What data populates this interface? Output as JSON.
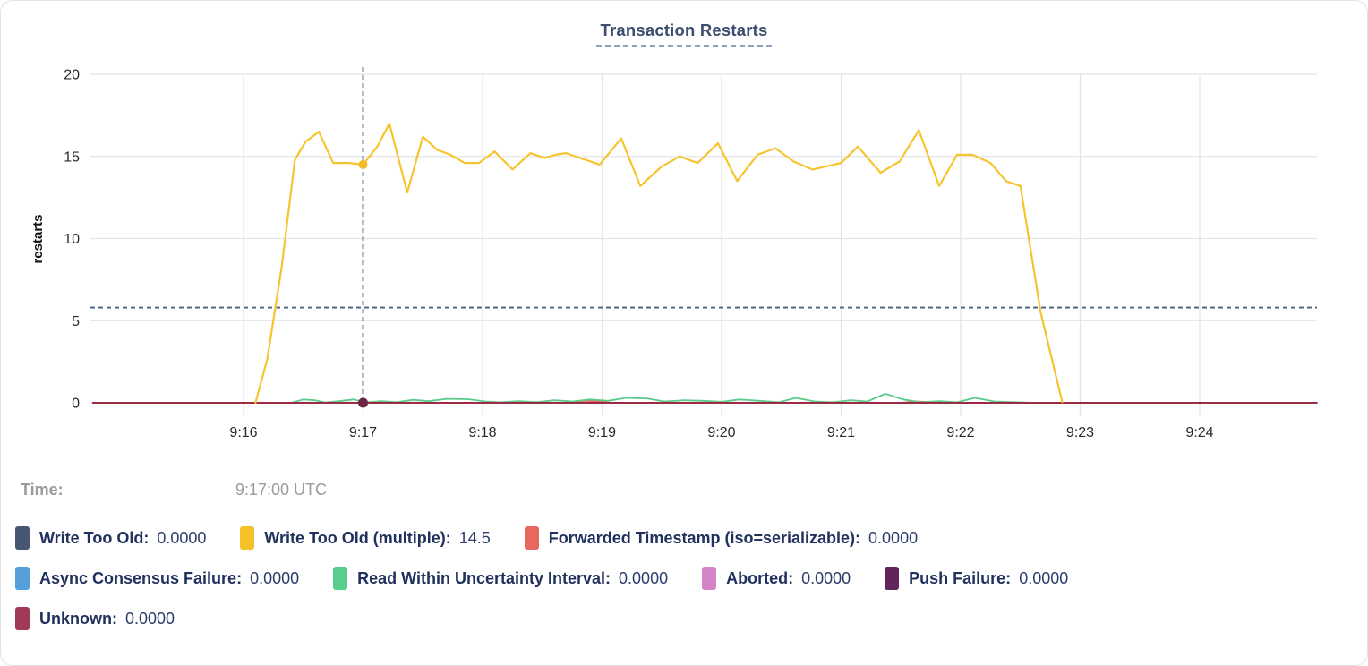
{
  "title": "Transaction Restarts",
  "tooltip": {
    "time_label": "Time:",
    "time_value": "9:17:00 UTC"
  },
  "legend": {
    "rows": [
      [
        {
          "label": "Write Too Old:",
          "value": "0.0000",
          "color": "#475672"
        },
        {
          "label": "Write Too Old (multiple):",
          "value": "14.5",
          "color": "#F4C127"
        },
        {
          "label": "Forwarded Timestamp (iso=serializable):",
          "value": "0.0000",
          "color": "#E7695D"
        }
      ],
      [
        {
          "label": "Async Consensus Failure:",
          "value": "0.0000",
          "color": "#55A0DB"
        },
        {
          "label": "Read Within Uncertainty Interval:",
          "value": "0.0000",
          "color": "#57CE8C"
        },
        {
          "label": "Aborted:",
          "value": "0.0000",
          "color": "#D584C9"
        },
        {
          "label": "Push Failure:",
          "value": "0.0000",
          "color": "#622459"
        }
      ],
      [
        {
          "label": "Unknown:",
          "value": "0.0000",
          "color": "#A03A58"
        }
      ]
    ]
  },
  "chart_data": {
    "type": "line",
    "title": "Transaction Restarts",
    "ylabel": "restarts",
    "ylim": [
      0,
      20
    ],
    "yticks": [
      0,
      5,
      10,
      15,
      20
    ],
    "xticks": [
      {
        "t": 16,
        "label": "9:16"
      },
      {
        "t": 17,
        "label": "9:17"
      },
      {
        "t": 18,
        "label": "9:18"
      },
      {
        "t": 19,
        "label": "9:19"
      },
      {
        "t": 20,
        "label": "9:20"
      },
      {
        "t": 21,
        "label": "9:21"
      },
      {
        "t": 22,
        "label": "9:22"
      },
      {
        "t": 23,
        "label": "9:23"
      },
      {
        "t": 24,
        "label": "9:24"
      }
    ],
    "x_domain_minutes": [
      14.74,
      24.98
    ],
    "x_unit": "clock time, minutes after 9:00",
    "grid": true,
    "crosshair": {
      "time_minutes": 17.0,
      "time_label": "9:17:00 UTC",
      "threshold_line_value": 5.8
    },
    "series": [
      {
        "name": "Write Too Old",
        "color": "#475672",
        "flat_zero": true,
        "w": 1.5
      },
      {
        "name": "Async Consensus Failure",
        "color": "#55A0DB",
        "flat_zero": true,
        "w": 1.5
      },
      {
        "name": "Aborted",
        "color": "#D584C9",
        "flat_zero": true,
        "w": 1.5
      },
      {
        "name": "Push Failure",
        "color": "#622459",
        "flat_zero": true,
        "w": 1.5
      },
      {
        "name": "Forwarded Timestamp (iso=serializable)",
        "color": "#E7695D",
        "w": 1.8,
        "points": [
          [
            14.74,
            0
          ],
          [
            18.7,
            0
          ],
          [
            18.85,
            0.12
          ],
          [
            18.97,
            0.08
          ],
          [
            19.08,
            0
          ],
          [
            21.5,
            0
          ],
          [
            21.62,
            0.08
          ],
          [
            21.78,
            0.04
          ],
          [
            21.9,
            0
          ],
          [
            22.6,
            0
          ]
        ]
      },
      {
        "name": "Read Within Uncertainty Interval",
        "color": "#5BCB8B",
        "w": 1.8,
        "points": [
          [
            16.4,
            0
          ],
          [
            16.5,
            0.2
          ],
          [
            16.6,
            0.15
          ],
          [
            16.68,
            0.02
          ],
          [
            16.8,
            0.1
          ],
          [
            16.92,
            0.2
          ],
          [
            17.02,
            0.02
          ],
          [
            17.15,
            0.1
          ],
          [
            17.28,
            0.04
          ],
          [
            17.42,
            0.18
          ],
          [
            17.55,
            0.1
          ],
          [
            17.7,
            0.24
          ],
          [
            17.88,
            0.22
          ],
          [
            18.02,
            0.08
          ],
          [
            18.15,
            0.03
          ],
          [
            18.3,
            0.1
          ],
          [
            18.45,
            0.04
          ],
          [
            18.6,
            0.15
          ],
          [
            18.75,
            0.08
          ],
          [
            18.9,
            0.2
          ],
          [
            19.05,
            0.12
          ],
          [
            19.2,
            0.3
          ],
          [
            19.38,
            0.26
          ],
          [
            19.52,
            0.08
          ],
          [
            19.68,
            0.15
          ],
          [
            19.85,
            0.12
          ],
          [
            20.0,
            0.06
          ],
          [
            20.15,
            0.2
          ],
          [
            20.32,
            0.12
          ],
          [
            20.48,
            0.03
          ],
          [
            20.62,
            0.3
          ],
          [
            20.78,
            0.08
          ],
          [
            20.93,
            0.03
          ],
          [
            21.08,
            0.15
          ],
          [
            21.22,
            0.08
          ],
          [
            21.37,
            0.55
          ],
          [
            21.52,
            0.2
          ],
          [
            21.67,
            0.03
          ],
          [
            21.82,
            0.1
          ],
          [
            21.97,
            0.03
          ],
          [
            22.12,
            0.3
          ],
          [
            22.28,
            0.08
          ],
          [
            22.45,
            0.04
          ],
          [
            22.6,
            0
          ]
        ]
      },
      {
        "name": "Unknown",
        "color": "#9B2C44",
        "flat_zero": true,
        "w": 2
      },
      {
        "name": "Write Too Old (multiple)",
        "color": "#F6C42F",
        "w": 2.2,
        "points": [
          [
            16.1,
            0
          ],
          [
            16.2,
            2.7
          ],
          [
            16.32,
            8.3
          ],
          [
            16.43,
            14.8
          ],
          [
            16.52,
            15.9
          ],
          [
            16.63,
            16.5
          ],
          [
            16.75,
            14.6
          ],
          [
            16.88,
            14.6
          ],
          [
            17.0,
            14.5
          ],
          [
            17.12,
            15.6
          ],
          [
            17.22,
            17.0
          ],
          [
            17.37,
            12.8
          ],
          [
            17.5,
            16.2
          ],
          [
            17.62,
            15.4
          ],
          [
            17.73,
            15.1
          ],
          [
            17.85,
            14.6
          ],
          [
            17.97,
            14.6
          ],
          [
            18.1,
            15.3
          ],
          [
            18.25,
            14.2
          ],
          [
            18.4,
            15.2
          ],
          [
            18.52,
            14.9
          ],
          [
            18.61,
            15.1
          ],
          [
            18.7,
            15.2
          ],
          [
            18.98,
            14.5
          ],
          [
            19.16,
            16.1
          ],
          [
            19.32,
            13.2
          ],
          [
            19.5,
            14.4
          ],
          [
            19.65,
            15.0
          ],
          [
            19.8,
            14.6
          ],
          [
            19.97,
            15.8
          ],
          [
            20.13,
            13.5
          ],
          [
            20.3,
            15.1
          ],
          [
            20.45,
            15.5
          ],
          [
            20.6,
            14.7
          ],
          [
            20.76,
            14.2
          ],
          [
            21.0,
            14.6
          ],
          [
            21.14,
            15.6
          ],
          [
            21.33,
            14.0
          ],
          [
            21.49,
            14.7
          ],
          [
            21.65,
            16.6
          ],
          [
            21.82,
            13.2
          ],
          [
            21.97,
            15.1
          ],
          [
            22.1,
            15.1
          ],
          [
            22.25,
            14.6
          ],
          [
            22.38,
            13.5
          ],
          [
            22.5,
            13.2
          ],
          [
            22.67,
            5.5
          ],
          [
            22.85,
            0.05
          ]
        ]
      }
    ],
    "hover_markers": [
      {
        "series": "Write Too Old (multiple)",
        "t": 17.0,
        "v": 14.5,
        "r": 5,
        "color": "#F2BA23"
      },
      {
        "series": "Unknown",
        "t": 17.0,
        "v": 0,
        "r": 5.5,
        "color": "#6F2546"
      }
    ]
  }
}
